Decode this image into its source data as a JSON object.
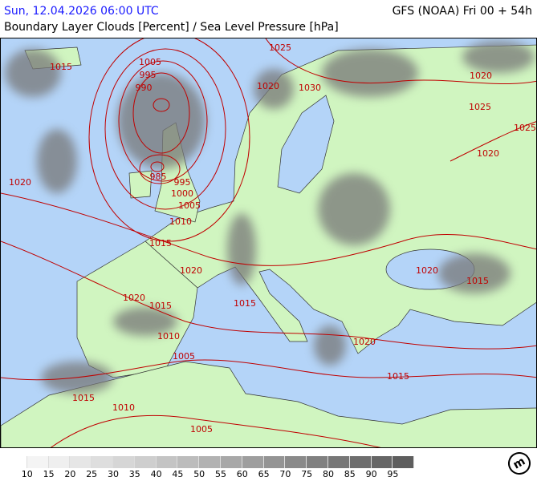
{
  "header": {
    "datetime": "Sun, 12.04.2026 06:00 UTC",
    "model_run": "GFS (NOAA) Fri 00 + 54h",
    "title": "Boundary Layer Clouds [Percent] / Sea Level Pressure [hPa]"
  },
  "colors": {
    "sea": "#b4d4f8",
    "land": "#d0f5c0",
    "isobar": "#c00000",
    "date_text": "#1a1aff"
  },
  "isobar_labels": [
    "1015",
    "1005",
    "995",
    "990",
    "1025",
    "1020",
    "1030",
    "1020",
    "1025",
    "1025",
    "1020",
    "1020",
    "985",
    "995",
    "1000",
    "1005",
    "1010",
    "1015",
    "1020",
    "1020",
    "1015",
    "1020",
    "1015",
    "1015",
    "1010",
    "1020",
    "1005",
    "1015",
    "1015",
    "1010",
    "1005"
  ],
  "legend": {
    "unit": "Percent",
    "colors": [
      "#ffffff",
      "#f4f4f4",
      "#efefef",
      "#e6e6e6",
      "#dedede",
      "#d6d6d6",
      "#cecece",
      "#c4c4c4",
      "#bcbcbc",
      "#b2b2b2",
      "#a8a8a8",
      "#9e9e9e",
      "#949494",
      "#8a8a8a",
      "#808080",
      "#777777",
      "#6e6e6e",
      "#666666",
      "#5e5e5e"
    ],
    "labels": [
      "10",
      "15",
      "20",
      "25",
      "30",
      "35",
      "40",
      "45",
      "50",
      "55",
      "60",
      "65",
      "70",
      "75",
      "80",
      "85",
      "90",
      "95"
    ]
  },
  "logo": "m"
}
